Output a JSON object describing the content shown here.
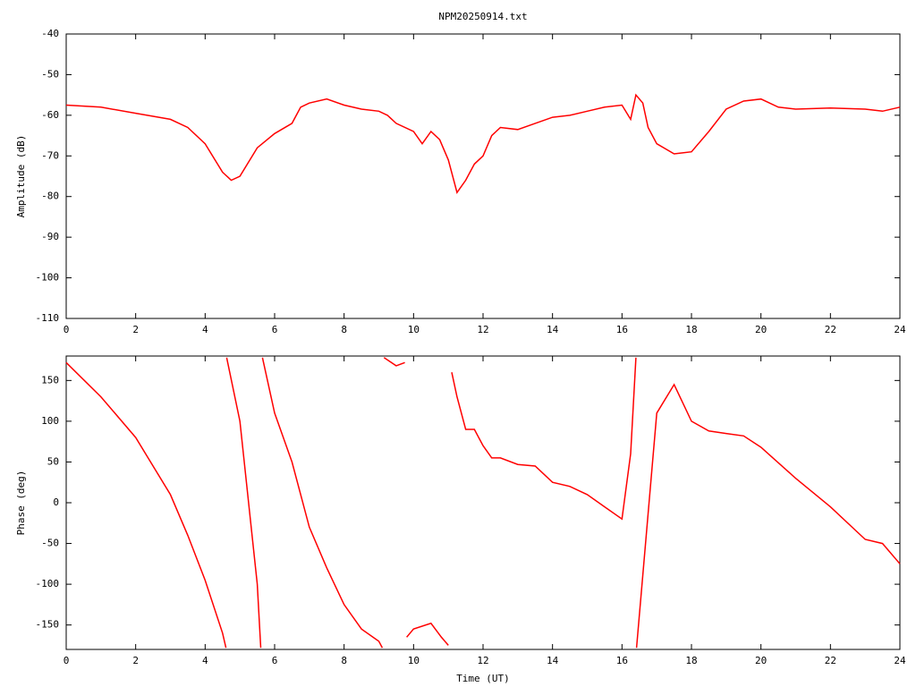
{
  "chart_data": [
    {
      "type": "line",
      "title": "NPM20250914.txt",
      "ylabel": "Amplitude (dB)",
      "x": [
        0,
        1,
        2,
        3,
        3.5,
        4,
        4.5,
        4.75,
        5,
        5.5,
        6,
        6.5,
        6.75,
        7,
        7.5,
        8,
        8.5,
        9,
        9.25,
        9.5,
        10,
        10.25,
        10.5,
        10.75,
        11,
        11.25,
        11.5,
        11.75,
        12,
        12.25,
        12.5,
        13,
        13.5,
        14,
        14.5,
        15,
        15.5,
        16,
        16.25,
        16.4,
        16.6,
        16.75,
        17,
        17.5,
        18,
        18.5,
        19,
        19.5,
        20,
        20.5,
        21,
        22,
        23,
        23.5,
        24
      ],
      "series": [
        {
          "color": "#ff0000",
          "values": [
            -57.5,
            -58,
            -59.5,
            -61,
            -63,
            -67,
            -74,
            -76,
            -75,
            -68,
            -64.5,
            -62,
            -58,
            -57,
            -56,
            -57.5,
            -58.5,
            -59,
            -60,
            -62,
            -64,
            -67,
            -64,
            -66,
            -71,
            -79,
            -76,
            -72,
            -70,
            -65,
            -63,
            -63.5,
            -62,
            -60.5,
            -60,
            -59,
            -58,
            -57.5,
            -61,
            -55,
            -57,
            -63,
            -67,
            -69.5,
            -69,
            -64,
            -58.5,
            -56.5,
            -56,
            -58,
            -58.5,
            -58.2,
            -58.5,
            -59,
            -58
          ]
        }
      ],
      "xlim": [
        0,
        24
      ],
      "xticks": [
        0,
        2,
        4,
        6,
        8,
        10,
        12,
        14,
        16,
        18,
        20,
        22,
        24
      ],
      "ylim": [
        -110,
        -40
      ],
      "yticks": [
        -110,
        -100,
        -90,
        -80,
        -70,
        -60,
        -50,
        -40
      ]
    },
    {
      "type": "line",
      "ylabel": "Phase (deg)",
      "xlabel": "Time (UT)",
      "x": [
        0,
        1,
        2,
        3,
        3.5,
        4,
        4.5,
        4.6,
        4.61,
        4.62,
        5,
        5.5,
        5.6,
        5.62,
        5.65,
        6,
        6.5,
        7,
        7.5,
        8,
        8.5,
        9,
        9.1,
        9.12,
        9.15,
        9.5,
        9.75,
        9.77,
        9.8,
        10,
        10.5,
        10.8,
        11,
        11.05,
        11.1,
        11.25,
        11.5,
        11.75,
        12,
        12.25,
        12.5,
        13,
        13.5,
        14,
        14.5,
        15,
        15.5,
        16,
        16.25,
        16.4,
        16.41,
        16.42,
        17,
        17.5,
        18,
        18.5,
        19,
        19.5,
        20,
        21,
        22,
        23,
        23.5,
        24
      ],
      "series": [
        {
          "color": "#ff0000",
          "values": [
            172,
            130,
            80,
            10,
            -40,
            -95,
            -160,
            -178,
            null,
            178,
            100,
            -100,
            -178,
            null,
            178,
            110,
            50,
            -30,
            -80,
            -125,
            -155,
            -170,
            -178,
            null,
            178,
            168,
            172,
            null,
            -165,
            -155,
            -148,
            -165,
            -175,
            null,
            160,
            130,
            90,
            90,
            70,
            55,
            55,
            47,
            45,
            25,
            20,
            10,
            -5,
            -20,
            60,
            178,
            null,
            -178,
            110,
            145,
            100,
            88,
            85,
            82,
            68,
            30,
            -5,
            -45,
            -50,
            -75
          ]
        }
      ],
      "xlim": [
        0,
        24
      ],
      "xticks": [
        0,
        2,
        4,
        6,
        8,
        10,
        12,
        14,
        16,
        18,
        20,
        22,
        24
      ],
      "ylim": [
        -180,
        180
      ],
      "yticks": [
        -150,
        -100,
        -50,
        0,
        50,
        100,
        150
      ]
    }
  ]
}
